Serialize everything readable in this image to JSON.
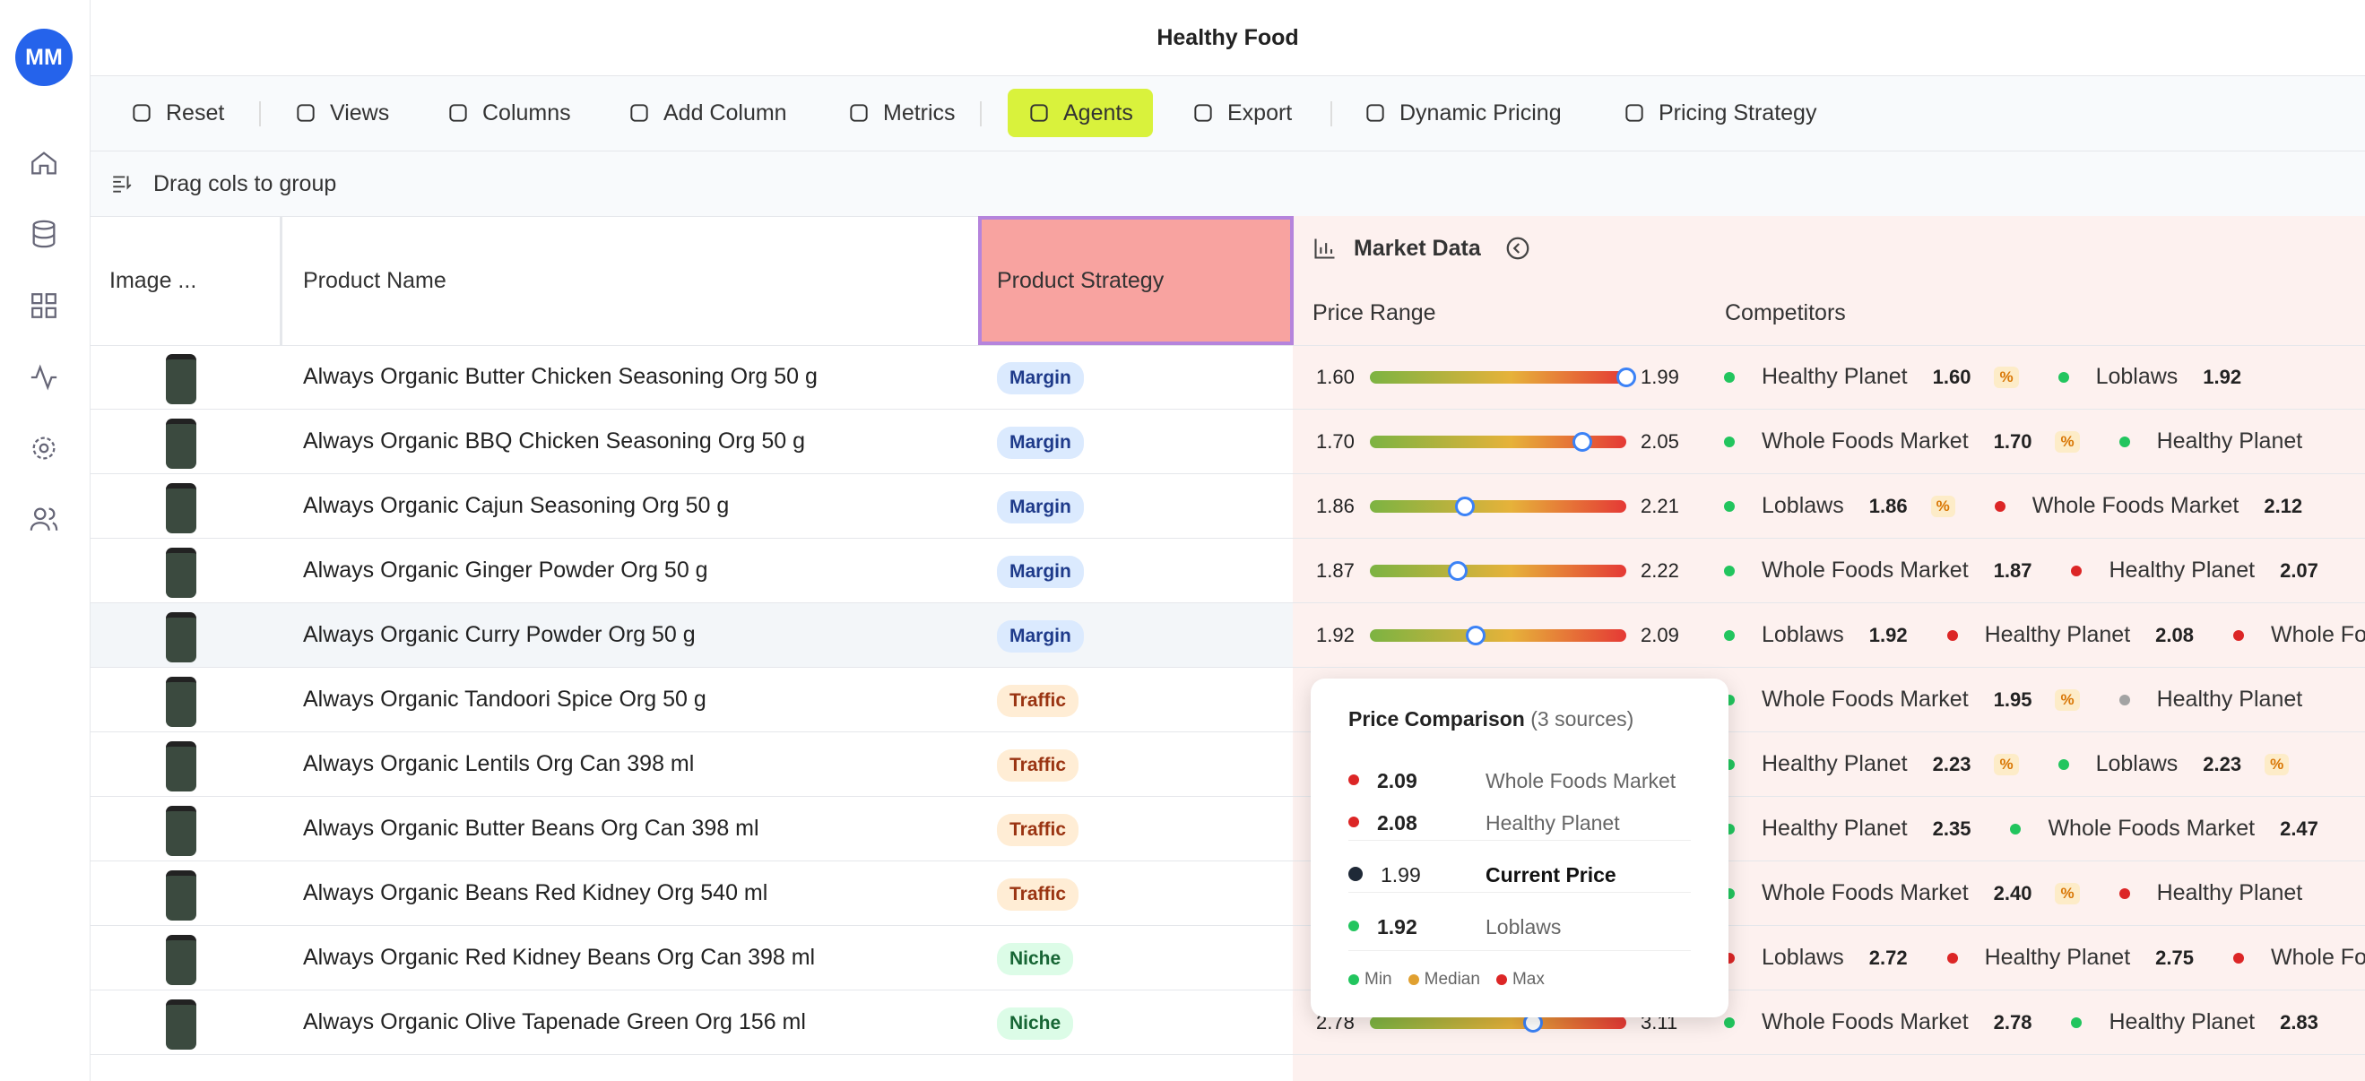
{
  "header": {
    "title": "Healthy Food"
  },
  "sidebar": {
    "avatar": "MM"
  },
  "toolbar": {
    "buttons": [
      "Reset",
      "Views",
      "Columns",
      "Add Column",
      "Metrics",
      "Agents",
      "Export",
      "Dynamic Pricing",
      "Pricing Strategy"
    ],
    "active": "Agents"
  },
  "group_bar": {
    "label": "Drag cols to group"
  },
  "table": {
    "columns": {
      "image": "Image ...",
      "name": "Product Name",
      "strategy": "Product Strategy",
      "group": "Market Data",
      "price_range": "Price Range",
      "competitors": "Competitors"
    },
    "rows": [
      {
        "name": "Always Organic Butter Chicken Seasoning Org 50 g",
        "strategy": "Margin",
        "price": {
          "min": "1.60",
          "max": "1.99",
          "current": 1.99
        },
        "competitors": [
          {
            "name": "Healthy Planet",
            "price": "1.60",
            "status": "green",
            "badge": "%"
          },
          {
            "name": "Loblaws",
            "price": "1.92",
            "status": "green"
          }
        ]
      },
      {
        "name": "Always Organic BBQ Chicken Seasoning Org 50 g",
        "strategy": "Margin",
        "price": {
          "min": "1.70",
          "max": "2.05",
          "current": 1.99
        },
        "competitors": [
          {
            "name": "Whole Foods Market",
            "price": "1.70",
            "status": "green",
            "badge": "%"
          },
          {
            "name": "Healthy Planet",
            "status": "green"
          }
        ]
      },
      {
        "name": "Always Organic Cajun Seasoning Org 50 g",
        "strategy": "Margin",
        "price": {
          "min": "1.86",
          "max": "2.21",
          "current": 1.99
        },
        "competitors": [
          {
            "name": "Loblaws",
            "price": "1.86",
            "status": "green",
            "badge": "%"
          },
          {
            "name": "Whole Foods Market",
            "price": "2.12",
            "status": "red"
          }
        ]
      },
      {
        "name": "Always Organic Ginger Powder Org 50 g",
        "strategy": "Margin",
        "price": {
          "min": "1.87",
          "max": "2.22",
          "current": 1.99
        },
        "competitors": [
          {
            "name": "Whole Foods Market",
            "price": "1.87",
            "status": "green"
          },
          {
            "name": "Healthy Planet",
            "price": "2.07",
            "status": "red"
          }
        ]
      },
      {
        "name": "Always Organic Curry Powder Org 50 g",
        "strategy": "Margin",
        "selected": true,
        "price": {
          "min": "1.92",
          "max": "2.09",
          "current": 1.99
        },
        "competitors": [
          {
            "name": "Loblaws",
            "price": "1.92",
            "status": "green"
          },
          {
            "name": "Healthy Planet",
            "price": "2.08",
            "status": "red"
          },
          {
            "name": "Whole Foods Market",
            "status": "red"
          }
        ]
      },
      {
        "name": "Always Organic Tandoori Spice Org 50 g",
        "strategy": "Traffic",
        "competitors": [
          {
            "name": "Whole Foods Market",
            "price": "1.95",
            "status": "green",
            "badge": "%"
          },
          {
            "name": "Healthy Planet",
            "status": "grey"
          }
        ]
      },
      {
        "name": "Always Organic Lentils Org Can 398 ml",
        "strategy": "Traffic",
        "competitors": [
          {
            "name": "Healthy Planet",
            "price": "2.23",
            "status": "green",
            "badge": "%"
          },
          {
            "name": "Loblaws",
            "price": "2.23",
            "status": "green",
            "badge": "%"
          }
        ]
      },
      {
        "name": "Always Organic Butter Beans Org Can 398 ml",
        "strategy": "Traffic",
        "competitors": [
          {
            "name": "Healthy Planet",
            "price": "2.35",
            "status": "green"
          },
          {
            "name": "Whole Foods Market",
            "price": "2.47",
            "status": "green"
          }
        ]
      },
      {
        "name": "Always Organic Beans Red Kidney Org 540 ml",
        "strategy": "Traffic",
        "competitors": [
          {
            "name": "Whole Foods Market",
            "price": "2.40",
            "status": "green",
            "badge": "%"
          },
          {
            "name": "Healthy Planet",
            "status": "red"
          }
        ]
      },
      {
        "name": "Always Organic Red Kidney Beans Org Can 398 ml",
        "strategy": "Niche",
        "competitors": [
          {
            "name": "Loblaws",
            "price": "2.72",
            "status": "red"
          },
          {
            "name": "Healthy Planet",
            "price": "2.75",
            "status": "red"
          },
          {
            "name": "Whole Foods Market",
            "status": "red"
          }
        ]
      },
      {
        "name": "Always Organic Olive Tapenade Green Org 156 ml",
        "strategy": "Niche",
        "price": {
          "min": "2.78",
          "max": "3.11",
          "current": 2.99
        },
        "competitors": [
          {
            "name": "Whole Foods Market",
            "price": "2.78",
            "status": "green"
          },
          {
            "name": "Healthy Planet",
            "price": "2.83",
            "status": "green"
          }
        ]
      }
    ]
  },
  "tooltip": {
    "title": "Price Comparison",
    "subtitle": "(3 sources)",
    "entries": [
      {
        "price": "2.09",
        "source": "Whole Foods Market",
        "status": "red"
      },
      {
        "price": "2.08",
        "source": "Healthy Planet",
        "status": "red"
      },
      {
        "price": "1.99",
        "source": "Current Price",
        "status": "current"
      },
      {
        "price": "1.92",
        "source": "Loblaws",
        "status": "green"
      }
    ],
    "legend": [
      {
        "label": "Min",
        "status": "green"
      },
      {
        "label": "Median",
        "status": "orange"
      },
      {
        "label": "Max",
        "status": "red"
      }
    ]
  }
}
